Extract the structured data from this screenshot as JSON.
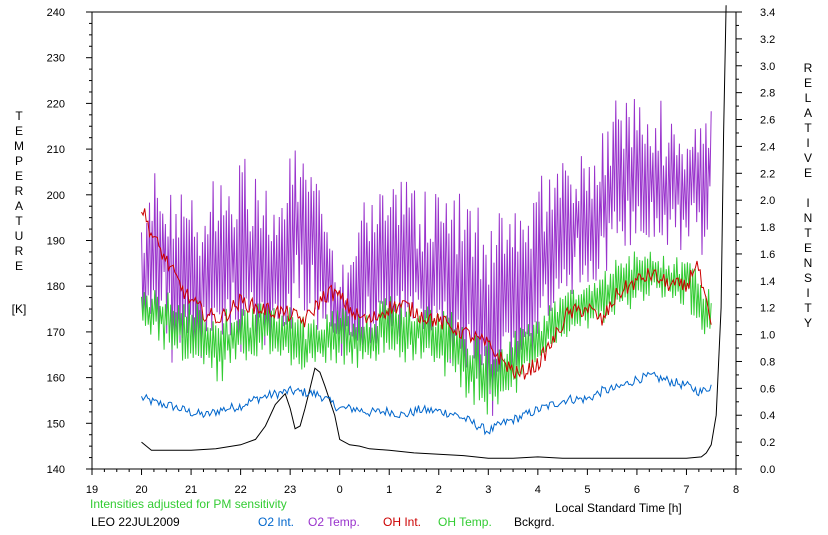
{
  "chart_data": {
    "type": "line",
    "xlabel": "Local Standard Time [h]",
    "x_ticks": [
      "19",
      "20",
      "21",
      "22",
      "23",
      "0",
      "1",
      "2",
      "3",
      "4",
      "5",
      "6",
      "7",
      "8"
    ],
    "xlim": [
      19,
      32
    ],
    "left_axis": {
      "label_letters": [
        "T",
        "E",
        "M",
        "P",
        "E",
        "R",
        "A",
        "T",
        "U",
        "R",
        "E"
      ],
      "unit": "[K]",
      "ylim": [
        140,
        240
      ],
      "ticks": [
        "140",
        "150",
        "160",
        "170",
        "180",
        "190",
        "200",
        "210",
        "220",
        "230",
        "240"
      ]
    },
    "right_axis": {
      "label_letters": [
        "R",
        "E",
        "L",
        "A",
        "T",
        "I",
        "V",
        "E",
        "",
        "I",
        "N",
        "T",
        "E",
        "N",
        "S",
        "I",
        "T",
        "Y"
      ],
      "ylim": [
        0.0,
        3.4
      ],
      "ticks": [
        "0.0",
        "0.2",
        "0.4",
        "0.6",
        "0.8",
        "1.0",
        "1.2",
        "1.4",
        "1.6",
        "1.8",
        "2.0",
        "2.2",
        "2.4",
        "2.6",
        "2.8",
        "3.0",
        "3.2",
        "3.4"
      ]
    },
    "note": "Intensities adjusted for PM sensitivity",
    "station": "LEO 22JUL2009",
    "grid": false,
    "series": [
      {
        "name": "O2 Int.",
        "axis": "right",
        "color": "#0066cc",
        "x": [
          20.0,
          20.3,
          20.6,
          21.0,
          21.3,
          21.6,
          22.0,
          22.3,
          22.6,
          23.0,
          23.3,
          23.6,
          24.0,
          24.3,
          24.6,
          25.0,
          25.3,
          25.6,
          26.0,
          26.3,
          26.6,
          27.0,
          27.3,
          27.6,
          28.0,
          28.3,
          28.6,
          29.0,
          29.3,
          29.6,
          30.0,
          30.3,
          30.6,
          31.0,
          31.3,
          31.5
        ],
        "y": [
          0.53,
          0.49,
          0.47,
          0.42,
          0.4,
          0.44,
          0.47,
          0.52,
          0.55,
          0.58,
          0.57,
          0.55,
          0.45,
          0.45,
          0.42,
          0.43,
          0.4,
          0.44,
          0.43,
          0.41,
          0.36,
          0.28,
          0.34,
          0.38,
          0.44,
          0.48,
          0.52,
          0.52,
          0.58,
          0.6,
          0.67,
          0.69,
          0.66,
          0.62,
          0.57,
          0.62
        ]
      },
      {
        "name": "O2 Temp.",
        "axis": "left",
        "color": "#9933cc",
        "x": [
          20.0,
          20.3,
          20.6,
          21.0,
          21.3,
          21.6,
          22.0,
          22.3,
          22.6,
          23.0,
          23.3,
          23.6,
          24.0,
          24.3,
          24.6,
          25.0,
          25.3,
          25.6,
          26.0,
          26.3,
          26.6,
          27.0,
          27.3,
          27.6,
          28.0,
          28.3,
          28.6,
          29.0,
          29.3,
          29.6,
          30.0,
          30.3,
          30.6,
          31.0,
          31.3,
          31.5
        ],
        "y": [
          180,
          190,
          184,
          183,
          182,
          185,
          188,
          186,
          183,
          188,
          192,
          186,
          172,
          178,
          184,
          187,
          186,
          184,
          183,
          181,
          178,
          174,
          176,
          180,
          186,
          190,
          192,
          194,
          197,
          203,
          205,
          204,
          203,
          202,
          202,
          205
        ],
        "amplitude": [
          14,
          16,
          18,
          17,
          16,
          18,
          19,
          17,
          15,
          16,
          17,
          14,
          8,
          14,
          16,
          17,
          16,
          16,
          17,
          18,
          19,
          20,
          18,
          17,
          16,
          15,
          14,
          13,
          14,
          15,
          16,
          15,
          13,
          12,
          13,
          12
        ]
      },
      {
        "name": "OH Int.",
        "axis": "right",
        "color": "#cc0000",
        "x": [
          20.0,
          20.2,
          20.5,
          20.8,
          21.0,
          21.3,
          21.6,
          22.0,
          22.3,
          22.6,
          23.0,
          23.3,
          23.6,
          23.8,
          24.0,
          24.3,
          24.6,
          25.0,
          25.3,
          25.6,
          26.0,
          26.3,
          26.6,
          27.0,
          27.3,
          27.6,
          28.0,
          28.3,
          28.6,
          29.0,
          29.3,
          29.6,
          30.0,
          30.3,
          30.6,
          31.0,
          31.2,
          31.5
        ],
        "y": [
          1.95,
          1.75,
          1.55,
          1.35,
          1.25,
          1.15,
          1.12,
          1.25,
          1.2,
          1.18,
          1.15,
          1.1,
          1.25,
          1.32,
          1.28,
          1.15,
          1.1,
          1.2,
          1.22,
          1.15,
          1.1,
          1.05,
          1.0,
          0.92,
          0.8,
          0.7,
          0.78,
          0.95,
          1.15,
          1.2,
          1.1,
          1.3,
          1.4,
          1.45,
          1.38,
          1.35,
          1.55,
          1.05
        ]
      },
      {
        "name": "OH Temp.",
        "axis": "left",
        "color": "#33cc33",
        "x": [
          20.0,
          20.3,
          20.6,
          21.0,
          21.3,
          21.6,
          22.0,
          22.3,
          22.6,
          23.0,
          23.3,
          23.6,
          24.0,
          24.3,
          24.6,
          25.0,
          25.3,
          25.6,
          26.0,
          26.3,
          26.6,
          27.0,
          27.3,
          27.6,
          28.0,
          28.3,
          28.6,
          29.0,
          29.3,
          29.6,
          30.0,
          30.3,
          30.6,
          31.0,
          31.3,
          31.5
        ],
        "y": [
          175,
          174,
          172,
          170,
          168,
          167,
          169,
          170,
          171,
          168,
          167,
          168,
          170,
          168,
          169,
          171,
          170,
          170,
          169,
          166,
          163,
          160,
          162,
          164,
          168,
          172,
          174,
          176,
          178,
          180,
          182,
          183,
          182,
          181,
          176,
          173
        ],
        "amplitude": [
          4,
          5,
          6,
          6,
          6,
          7,
          6,
          6,
          5,
          6,
          6,
          5,
          6,
          6,
          6,
          6,
          6,
          6,
          6,
          7,
          7,
          7,
          6,
          6,
          5,
          5,
          5,
          5,
          5,
          5,
          5,
          5,
          5,
          5,
          5,
          5
        ]
      },
      {
        "name": "Bckgrd.",
        "axis": "right",
        "color": "#000000",
        "x": [
          20.0,
          20.2,
          20.5,
          21.0,
          21.5,
          22.0,
          22.3,
          22.5,
          22.7,
          22.9,
          23.0,
          23.1,
          23.2,
          23.3,
          23.4,
          23.5,
          23.6,
          23.7,
          23.9,
          24.0,
          24.2,
          24.4,
          24.6,
          25.0,
          25.5,
          26.0,
          26.5,
          27.0,
          27.5,
          28.0,
          28.5,
          29.0,
          29.5,
          30.0,
          30.5,
          31.0,
          31.3,
          31.4,
          31.5,
          31.6,
          31.7,
          31.75,
          31.8
        ],
        "y": [
          0.2,
          0.14,
          0.14,
          0.14,
          0.15,
          0.18,
          0.22,
          0.32,
          0.48,
          0.56,
          0.45,
          0.3,
          0.32,
          0.45,
          0.6,
          0.75,
          0.72,
          0.62,
          0.4,
          0.22,
          0.18,
          0.17,
          0.15,
          0.14,
          0.12,
          0.11,
          0.1,
          0.08,
          0.08,
          0.09,
          0.08,
          0.08,
          0.08,
          0.08,
          0.08,
          0.08,
          0.09,
          0.12,
          0.18,
          0.4,
          1.2,
          2.5,
          3.45
        ]
      }
    ]
  }
}
